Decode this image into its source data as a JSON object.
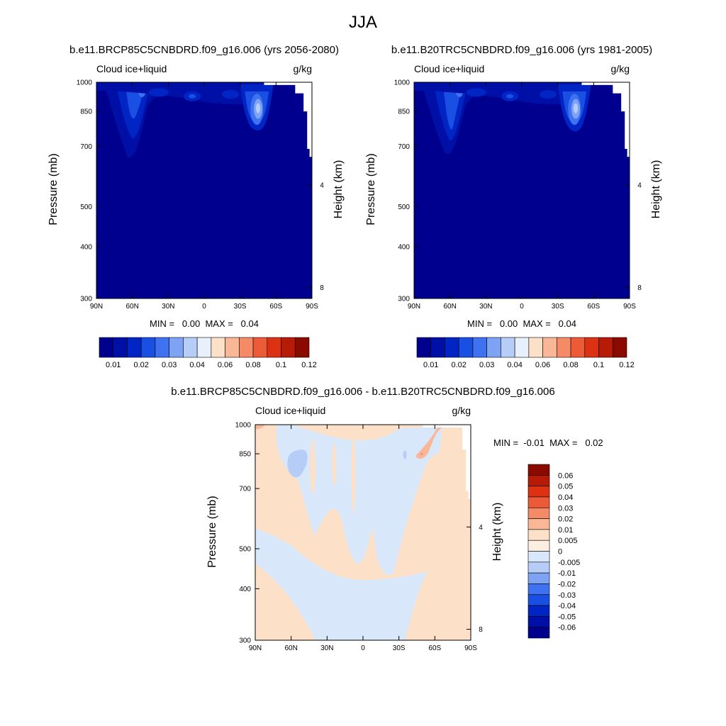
{
  "figure": {
    "title": "JJA"
  },
  "chart_data": [
    {
      "type": "heatmap",
      "title": "b.e11.BRCP85C5CNBDRD.f09_g16.006 (yrs 2056-2080)",
      "variable": "Cloud ice+liquid",
      "units": "g/kg",
      "xlabel": "",
      "ylabel": "Pressure (mb)",
      "ylabel_right": "Height (km)",
      "x_ticks": [
        "90N",
        "60N",
        "30N",
        "0",
        "30S",
        "60S",
        "90S"
      ],
      "x_range": [
        90,
        -90
      ],
      "y_ticks": [
        300,
        400,
        500,
        700,
        850,
        1000
      ],
      "y_range": [
        1000,
        300
      ],
      "y_scale": "log",
      "y_right_ticks": [
        8,
        4
      ],
      "min_label": "MIN =   0.00  MAX =   0.04",
      "min": 0.0,
      "max": 0.04,
      "colorbar": {
        "orientation": "horizontal",
        "levels": [
          "0.01",
          "0.02",
          "0.03",
          "0.04",
          "0.06",
          "0.08",
          "0.1",
          "0.12"
        ],
        "colors": [
          "#00008f",
          "#0010a6",
          "#0025c4",
          "#1a4fe3",
          "#3e72f0",
          "#7ea3f5",
          "#b6cdf7",
          "#e8f0fc",
          "#fde0c8",
          "#f9b797",
          "#f48a66",
          "#ec5a38",
          "#dc3113",
          "#b71a06",
          "#8a0a00"
        ]
      },
      "regions": [
        {
          "lat": 58,
          "p": 900,
          "value": 0.02
        },
        {
          "lat": 52,
          "p": 960,
          "value": 0.035
        },
        {
          "lat": -42,
          "p": 860,
          "value": 0.04
        },
        {
          "lat": -25,
          "p": 930,
          "value": 0.015
        }
      ]
    },
    {
      "type": "heatmap",
      "title": "b.e11.B20TRC5CNBDRD.f09_g16.006 (yrs 1981-2005)",
      "variable": "Cloud ice+liquid",
      "units": "g/kg",
      "xlabel": "",
      "ylabel": "Pressure (mb)",
      "ylabel_right": "Height (km)",
      "x_ticks": [
        "90N",
        "60N",
        "30N",
        "0",
        "30S",
        "60S",
        "90S"
      ],
      "x_range": [
        90,
        -90
      ],
      "y_ticks": [
        300,
        400,
        500,
        700,
        850,
        1000
      ],
      "y_range": [
        1000,
        300
      ],
      "y_scale": "log",
      "y_right_ticks": [
        8,
        4
      ],
      "min_label": "MIN =   0.00  MAX =   0.04",
      "min": 0.0,
      "max": 0.04,
      "colorbar": {
        "orientation": "horizontal",
        "levels": [
          "0.01",
          "0.02",
          "0.03",
          "0.04",
          "0.06",
          "0.08",
          "0.1",
          "0.12"
        ],
        "colors": [
          "#00008f",
          "#0010a6",
          "#0025c4",
          "#1a4fe3",
          "#3e72f0",
          "#7ea3f5",
          "#b6cdf7",
          "#e8f0fc",
          "#fde0c8",
          "#f9b797",
          "#f48a66",
          "#ec5a38",
          "#dc3113",
          "#b71a06",
          "#8a0a00"
        ]
      },
      "regions": [
        {
          "lat": 58,
          "p": 880,
          "value": 0.025
        },
        {
          "lat": 52,
          "p": 960,
          "value": 0.035
        },
        {
          "lat": -42,
          "p": 850,
          "value": 0.04
        },
        {
          "lat": -25,
          "p": 930,
          "value": 0.015
        }
      ]
    },
    {
      "type": "heatmap",
      "title": "b.e11.BRCP85C5CNBDRD.f09_g16.006 - b.e11.B20TRC5CNBDRD.f09_g16.006",
      "variable": "Cloud ice+liquid",
      "units": "g/kg",
      "xlabel": "",
      "ylabel": "Pressure (mb)",
      "ylabel_right": "Height (km)",
      "x_ticks": [
        "90N",
        "60N",
        "30N",
        "0",
        "30S",
        "60S",
        "90S"
      ],
      "x_range": [
        90,
        -90
      ],
      "y_ticks": [
        300,
        400,
        500,
        700,
        850,
        1000
      ],
      "y_range": [
        1000,
        300
      ],
      "y_scale": "log",
      "y_right_ticks": [
        8,
        4
      ],
      "min_label": "MIN =  -0.01  MAX =   0.02",
      "min": -0.01,
      "max": 0.02,
      "colorbar": {
        "orientation": "vertical",
        "levels": [
          "0.06",
          "0.05",
          "0.04",
          "0.03",
          "0.02",
          "0.01",
          "0.005",
          "0",
          "-0.005",
          "-0.01",
          "-0.02",
          "-0.03",
          "-0.04",
          "-0.05",
          "-0.06"
        ],
        "colors": [
          "#8a0a00",
          "#b71a06",
          "#dc3113",
          "#ec5a38",
          "#f48a66",
          "#f9b797",
          "#fde0c8",
          "#fdeee2",
          "#d8e8fa",
          "#b6cdf7",
          "#7ea3f5",
          "#3e72f0",
          "#1a4fe3",
          "#0025c4",
          "#0010a6",
          "#00008f"
        ]
      },
      "regions": [
        {
          "lat": 55,
          "p": 790,
          "value": -0.01
        },
        {
          "lat": -50,
          "p": 880,
          "value": 0.01
        },
        {
          "lat": 85,
          "p": 985,
          "value": 0.01
        }
      ]
    }
  ]
}
